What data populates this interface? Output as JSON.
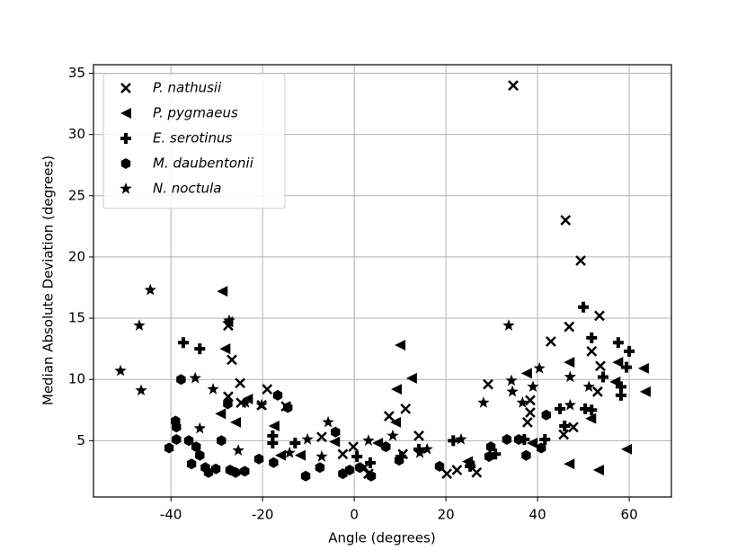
{
  "chart_data": {
    "type": "scatter",
    "x_label": "Angle (degrees)",
    "y_label": "Median Absolute Deviation (degrees)",
    "xlim": [
      -56.9,
      69.2
    ],
    "ylim": [
      0.4,
      35.7
    ],
    "xticks": [
      -40,
      -20,
      0,
      20,
      40,
      60
    ],
    "yticks": [
      5,
      10,
      15,
      20,
      25,
      30,
      35
    ],
    "grid": true,
    "legend": "upper left",
    "series": [
      {
        "name": "P. nathusii",
        "color": "#000000",
        "marker": "x",
        "x": [
          34.7,
          46.1,
          49.4,
          -27.5,
          53.5,
          46.9,
          42.9,
          -26.7,
          51.8,
          53.7,
          -24.9,
          -19.0,
          29.2,
          53.1,
          -27.5,
          -24.7,
          -20.2,
          -14.9,
          11.2,
          38.4,
          7.6,
          47.8,
          14.1,
          -7.1,
          45.7,
          -0.2,
          -2.5,
          2.2,
          3.1,
          20.2,
          22.4,
          26.7,
          38.4,
          37.8,
          10.6
        ],
        "values": [
          34.0,
          23.0,
          19.7,
          14.4,
          15.2,
          14.3,
          13.1,
          11.6,
          12.3,
          11.1,
          9.7,
          9.2,
          9.6,
          9.0,
          8.6,
          8.1,
          7.9,
          7.8,
          7.6,
          8.3,
          7.0,
          6.1,
          5.4,
          5.3,
          5.5,
          4.5,
          3.9,
          2.8,
          2.3,
          2.3,
          2.6,
          2.4,
          7.3,
          6.5,
          3.9
        ]
      },
      {
        "name": "P. pygmaeus",
        "color": "#000000",
        "marker": "triangle-left",
        "x": [
          -28.8,
          -28.2,
          -27.6,
          10.0,
          12.5,
          9.2,
          37.6,
          46.9,
          57.5,
          63.1,
          63.5,
          56.9,
          -29.2,
          -23.3,
          -25.9,
          -17.5,
          9.0,
          51.6,
          59.4,
          46.9,
          53.3,
          -11.8,
          -16.1,
          -4.3,
          5.1,
          38.8,
          24.7
        ],
        "values": [
          17.2,
          12.5,
          14.7,
          12.8,
          10.1,
          9.2,
          10.5,
          11.4,
          11.4,
          10.9,
          9.0,
          9.8,
          7.2,
          8.4,
          6.5,
          6.2,
          6.5,
          6.8,
          4.3,
          3.1,
          2.6,
          3.8,
          3.8,
          4.9,
          4.8,
          4.8,
          3.3
        ]
      },
      {
        "name": "E. serotinus",
        "color": "#000000",
        "marker": "plus",
        "x": [
          -37.3,
          -33.7,
          50.0,
          51.8,
          57.6,
          60.0,
          59.4,
          54.3,
          58.2,
          58.2,
          44.9,
          50.4,
          51.8,
          -17.8,
          -17.8,
          -12.9,
          30.8,
          37.1,
          41.6,
          45.9,
          14.1,
          10.2,
          3.5,
          25.3,
          21.6,
          0.6
        ],
        "values": [
          13.0,
          12.5,
          15.9,
          13.4,
          13.0,
          12.3,
          11.0,
          10.2,
          9.4,
          8.7,
          7.6,
          7.6,
          7.5,
          5.4,
          4.8,
          4.8,
          3.9,
          5.1,
          5.1,
          6.2,
          4.3,
          3.7,
          3.2,
          2.9,
          5.0,
          3.7
        ]
      },
      {
        "name": "M. daubentonii",
        "color": "#000000",
        "marker": "hexagon",
        "x": [
          -37.8,
          -39.0,
          -38.8,
          -38.8,
          -40.4,
          -36.1,
          -34.5,
          -33.7,
          -35.5,
          -32.5,
          -31.8,
          -30.2,
          -29.0,
          -27.1,
          -25.9,
          -23.9,
          -27.6,
          -16.7,
          -14.5,
          -20.8,
          -17.6,
          -10.6,
          -7.5,
          -4.1,
          -2.5,
          -1.0,
          1.2,
          3.7,
          6.9,
          9.8,
          18.6,
          29.8,
          33.3,
          35.9,
          37.5,
          40.8,
          41.9,
          29.4,
          25.3
        ],
        "values": [
          10.0,
          6.6,
          6.1,
          5.1,
          4.4,
          5.0,
          4.5,
          3.8,
          3.1,
          2.8,
          2.4,
          2.7,
          5.0,
          2.6,
          2.4,
          2.5,
          8.0,
          8.7,
          7.7,
          3.5,
          3.2,
          2.1,
          2.8,
          5.7,
          2.3,
          2.6,
          2.8,
          2.1,
          4.5,
          3.4,
          2.9,
          4.5,
          5.1,
          5.1,
          3.8,
          4.4,
          7.1,
          3.7,
          3.1
        ]
      },
      {
        "name": "N. noctula",
        "color": "#000000",
        "marker": "star",
        "x": [
          -44.5,
          -46.9,
          -51.0,
          -46.5,
          -34.7,
          -30.8,
          -27.3,
          33.7,
          34.3,
          40.4,
          47.1,
          34.5,
          36.7,
          39.0,
          28.2,
          -20.2,
          -23.7,
          -33.7,
          -25.3,
          -5.7,
          -10.2,
          -14.1,
          -7.1,
          3.1,
          8.4,
          14.3,
          15.9,
          23.3,
          47.1,
          51.2
        ],
        "values": [
          17.3,
          14.4,
          10.7,
          9.1,
          10.1,
          9.2,
          14.8,
          14.4,
          9.9,
          10.9,
          10.2,
          9.0,
          8.1,
          9.4,
          8.1,
          7.9,
          8.1,
          6.0,
          4.2,
          6.5,
          5.1,
          4.0,
          3.7,
          5.0,
          5.4,
          4.0,
          4.3,
          5.1,
          7.9,
          9.4
        ]
      }
    ]
  }
}
